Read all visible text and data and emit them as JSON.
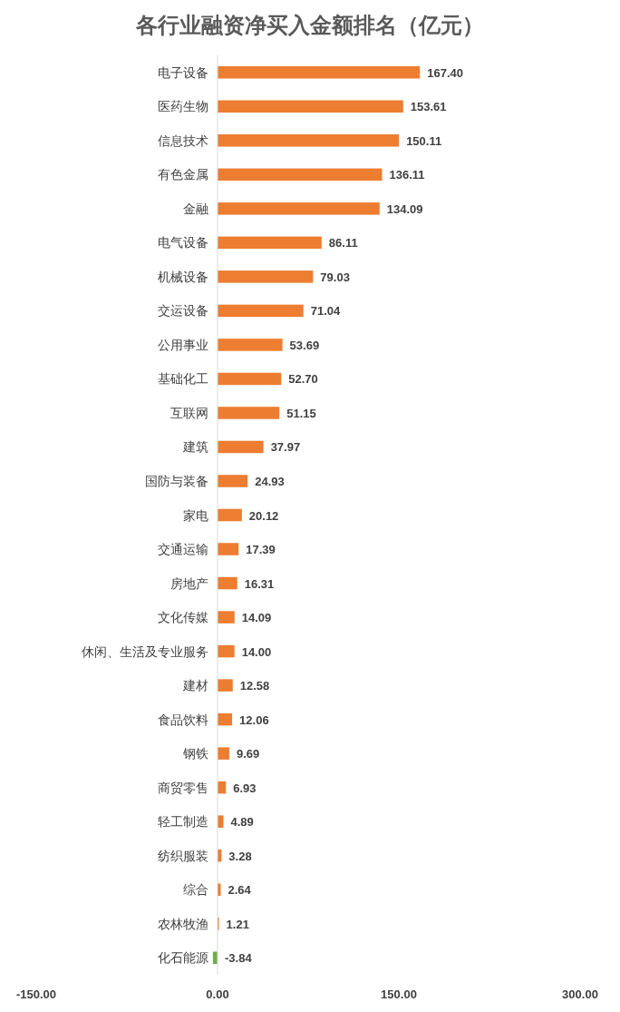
{
  "chart_data": {
    "type": "bar",
    "orientation": "horizontal",
    "title": "各行业融资净买入金额排名（亿元）",
    "categories": [
      "电子设备",
      "医药生物",
      "信息技术",
      "有色金属",
      "金融",
      "电气设备",
      "机械设备",
      "交运设备",
      "公用事业",
      "基础化工",
      "互联网",
      "建筑",
      "国防与装备",
      "家电",
      "交通运输",
      "房地产",
      "文化传媒",
      "休闲、生活及专业服务",
      "建材",
      "食品饮料",
      "钢铁",
      "商贸零售",
      "轻工制造",
      "纺织服装",
      "综合",
      "农林牧渔",
      "化石能源"
    ],
    "values": [
      167.4,
      153.61,
      150.11,
      136.11,
      134.09,
      86.11,
      79.03,
      71.04,
      53.69,
      52.7,
      51.15,
      37.97,
      24.93,
      20.12,
      17.39,
      16.31,
      14.09,
      14.0,
      12.58,
      12.06,
      9.69,
      6.93,
      4.89,
      3.28,
      2.64,
      1.21,
      -3.84
    ],
    "value_labels": [
      "167.40",
      "153.61",
      "150.11",
      "136.11",
      "134.09",
      "86.11",
      "79.03",
      "71.04",
      "53.69",
      "52.70",
      "51.15",
      "37.97",
      "24.93",
      "20.12",
      "17.39",
      "16.31",
      "14.09",
      "14.00",
      "12.58",
      "12.06",
      "9.69",
      "6.93",
      "4.89",
      "3.28",
      "2.64",
      "1.21",
      "-3.84"
    ],
    "colors": [
      "#ed7d31",
      "#ed7d31",
      "#ed7d31",
      "#ed7d31",
      "#ed7d31",
      "#ed7d31",
      "#ed7d31",
      "#ed7d31",
      "#ed7d31",
      "#ed7d31",
      "#ed7d31",
      "#ed7d31",
      "#ed7d31",
      "#ed7d31",
      "#ed7d31",
      "#ed7d31",
      "#ed7d31",
      "#ed7d31",
      "#ed7d31",
      "#ed7d31",
      "#ed7d31",
      "#ed7d31",
      "#ed7d31",
      "#ed7d31",
      "#ed7d31",
      "#ed7d31",
      "#70ad47"
    ],
    "xlim": [
      -150,
      300
    ],
    "xticks": [
      {
        "value": -150,
        "label": "-150.00"
      },
      {
        "value": 0,
        "label": "0.00"
      },
      {
        "value": 150,
        "label": "150.00"
      },
      {
        "value": 300,
        "label": "300.00"
      }
    ],
    "grid": false
  }
}
